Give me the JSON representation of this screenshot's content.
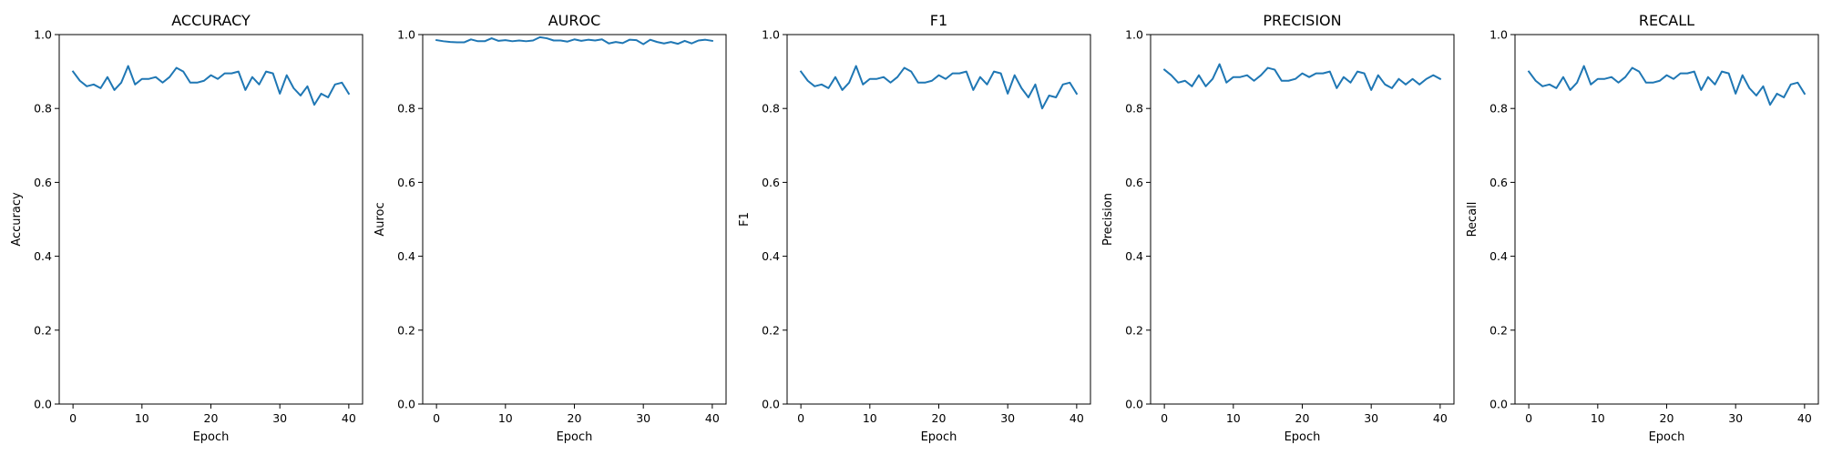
{
  "figure": {
    "series_color": "#1f77b4"
  },
  "chart_data": [
    {
      "type": "line",
      "title": "ACCURACY",
      "xlabel": "Epoch",
      "ylabel": "Accuracy",
      "xlim": [
        -2,
        42
      ],
      "ylim": [
        0.0,
        1.0
      ],
      "xticks": [
        0,
        10,
        20,
        30,
        40
      ],
      "yticks": [
        0.0,
        0.2,
        0.4,
        0.6,
        0.8,
        1.0
      ],
      "grid": false,
      "x": [
        0,
        1,
        2,
        3,
        4,
        5,
        6,
        7,
        8,
        9,
        10,
        11,
        12,
        13,
        14,
        15,
        16,
        17,
        18,
        19,
        20,
        21,
        22,
        23,
        24,
        25,
        26,
        27,
        28,
        29,
        30,
        31,
        32,
        33,
        34,
        35,
        36,
        37,
        38,
        39,
        40
      ],
      "series": [
        {
          "values": [
            0.9,
            0.875,
            0.86,
            0.865,
            0.855,
            0.885,
            0.85,
            0.87,
            0.915,
            0.865,
            0.88,
            0.88,
            0.885,
            0.87,
            0.885,
            0.91,
            0.9,
            0.87,
            0.87,
            0.875,
            0.89,
            0.88,
            0.895,
            0.895,
            0.9,
            0.85,
            0.885,
            0.865,
            0.9,
            0.895,
            0.84,
            0.89,
            0.855,
            0.835,
            0.86,
            0.81,
            0.84,
            0.83,
            0.865,
            0.87,
            0.84
          ]
        }
      ]
    },
    {
      "type": "line",
      "title": "AUROC",
      "xlabel": "Epoch",
      "ylabel": "Auroc",
      "xlim": [
        -2,
        42
      ],
      "ylim": [
        0.0,
        1.0
      ],
      "xticks": [
        0,
        10,
        20,
        30,
        40
      ],
      "yticks": [
        0.0,
        0.2,
        0.4,
        0.6,
        0.8,
        1.0
      ],
      "grid": false,
      "x": [
        0,
        1,
        2,
        3,
        4,
        5,
        6,
        7,
        8,
        9,
        10,
        11,
        12,
        13,
        14,
        15,
        16,
        17,
        18,
        19,
        20,
        21,
        22,
        23,
        24,
        25,
        26,
        27,
        28,
        29,
        30,
        31,
        32,
        33,
        34,
        35,
        36,
        37,
        38,
        39,
        40
      ],
      "series": [
        {
          "values": [
            0.985,
            0.982,
            0.98,
            0.979,
            0.979,
            0.987,
            0.982,
            0.982,
            0.99,
            0.983,
            0.985,
            0.982,
            0.984,
            0.982,
            0.984,
            0.993,
            0.99,
            0.984,
            0.984,
            0.981,
            0.987,
            0.983,
            0.986,
            0.984,
            0.987,
            0.976,
            0.98,
            0.977,
            0.986,
            0.985,
            0.974,
            0.986,
            0.98,
            0.976,
            0.98,
            0.975,
            0.983,
            0.976,
            0.984,
            0.986,
            0.983
          ]
        }
      ]
    },
    {
      "type": "line",
      "title": "F1",
      "xlabel": "Epoch",
      "ylabel": "F1",
      "xlim": [
        -2,
        42
      ],
      "ylim": [
        0.0,
        1.0
      ],
      "xticks": [
        0,
        10,
        20,
        30,
        40
      ],
      "yticks": [
        0.0,
        0.2,
        0.4,
        0.6,
        0.8,
        1.0
      ],
      "grid": false,
      "x": [
        0,
        1,
        2,
        3,
        4,
        5,
        6,
        7,
        8,
        9,
        10,
        11,
        12,
        13,
        14,
        15,
        16,
        17,
        18,
        19,
        20,
        21,
        22,
        23,
        24,
        25,
        26,
        27,
        28,
        29,
        30,
        31,
        32,
        33,
        34,
        35,
        36,
        37,
        38,
        39,
        40
      ],
      "series": [
        {
          "values": [
            0.9,
            0.875,
            0.86,
            0.865,
            0.855,
            0.885,
            0.85,
            0.87,
            0.915,
            0.865,
            0.88,
            0.88,
            0.885,
            0.87,
            0.885,
            0.91,
            0.9,
            0.87,
            0.87,
            0.875,
            0.89,
            0.88,
            0.895,
            0.895,
            0.9,
            0.85,
            0.885,
            0.865,
            0.9,
            0.895,
            0.84,
            0.89,
            0.855,
            0.83,
            0.865,
            0.8,
            0.835,
            0.83,
            0.865,
            0.87,
            0.84
          ]
        }
      ]
    },
    {
      "type": "line",
      "title": "PRECISION",
      "xlabel": "Epoch",
      "ylabel": "Precision",
      "xlim": [
        -2,
        42
      ],
      "ylim": [
        0.0,
        1.0
      ],
      "xticks": [
        0,
        10,
        20,
        30,
        40
      ],
      "yticks": [
        0.0,
        0.2,
        0.4,
        0.6,
        0.8,
        1.0
      ],
      "grid": false,
      "x": [
        0,
        1,
        2,
        3,
        4,
        5,
        6,
        7,
        8,
        9,
        10,
        11,
        12,
        13,
        14,
        15,
        16,
        17,
        18,
        19,
        20,
        21,
        22,
        23,
        24,
        25,
        26,
        27,
        28,
        29,
        30,
        31,
        32,
        33,
        34,
        35,
        36,
        37,
        38,
        39,
        40
      ],
      "series": [
        {
          "values": [
            0.905,
            0.89,
            0.87,
            0.875,
            0.86,
            0.89,
            0.86,
            0.88,
            0.92,
            0.87,
            0.885,
            0.885,
            0.89,
            0.875,
            0.89,
            0.91,
            0.905,
            0.875,
            0.875,
            0.88,
            0.895,
            0.885,
            0.895,
            0.895,
            0.9,
            0.855,
            0.885,
            0.87,
            0.9,
            0.895,
            0.85,
            0.89,
            0.865,
            0.855,
            0.88,
            0.865,
            0.88,
            0.865,
            0.88,
            0.89,
            0.88
          ]
        }
      ]
    },
    {
      "type": "line",
      "title": "RECALL",
      "xlabel": "Epoch",
      "ylabel": "Recall",
      "xlim": [
        -2,
        42
      ],
      "ylim": [
        0.0,
        1.0
      ],
      "xticks": [
        0,
        10,
        20,
        30,
        40
      ],
      "yticks": [
        0.0,
        0.2,
        0.4,
        0.6,
        0.8,
        1.0
      ],
      "grid": false,
      "x": [
        0,
        1,
        2,
        3,
        4,
        5,
        6,
        7,
        8,
        9,
        10,
        11,
        12,
        13,
        14,
        15,
        16,
        17,
        18,
        19,
        20,
        21,
        22,
        23,
        24,
        25,
        26,
        27,
        28,
        29,
        30,
        31,
        32,
        33,
        34,
        35,
        36,
        37,
        38,
        39,
        40
      ],
      "series": [
        {
          "values": [
            0.9,
            0.875,
            0.86,
            0.865,
            0.855,
            0.885,
            0.85,
            0.87,
            0.915,
            0.865,
            0.88,
            0.88,
            0.885,
            0.87,
            0.885,
            0.91,
            0.9,
            0.87,
            0.87,
            0.875,
            0.89,
            0.88,
            0.895,
            0.895,
            0.9,
            0.85,
            0.885,
            0.865,
            0.9,
            0.895,
            0.84,
            0.89,
            0.855,
            0.835,
            0.86,
            0.81,
            0.84,
            0.83,
            0.865,
            0.87,
            0.84
          ]
        }
      ]
    }
  ]
}
